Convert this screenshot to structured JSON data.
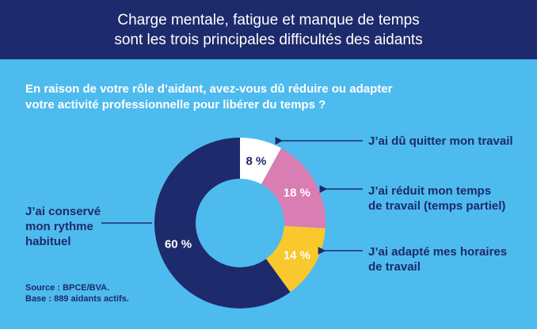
{
  "header": {
    "title_line1": "Charge mentale, fatigue et manque de temps",
    "title_line2": "sont les trois principales difficultés des aidants"
  },
  "question": {
    "line1": "En raison de votre rôle d’aidant, avez-vous dû réduire ou adapter",
    "line2": "votre activité professionnelle pour libérer du temps ?"
  },
  "source": {
    "line1": "Source : BPCE/BVA.",
    "line2": "Base : 889 aidants actifs."
  },
  "chart_data": {
    "type": "pie",
    "title": "",
    "slices": [
      {
        "label": "J'ai dû quitter mon travail",
        "value": 8,
        "display": "8 %",
        "color": "#ffffff",
        "text_color": "#1d2a6b"
      },
      {
        "label": "J'ai réduit mon temps de travail (temps partiel)",
        "value": 18,
        "display": "18 %",
        "color": "#d97db3",
        "text_color": "#ffffff"
      },
      {
        "label": "J'ai adapté mes horaires de travail",
        "value": 14,
        "display": "14 %",
        "color": "#f9c82d",
        "text_color": "#ffffff"
      },
      {
        "label": "J'ai conservé mon rythme habituel",
        "value": 60,
        "display": "60 %",
        "color": "#1d2a6b",
        "text_color": "#ffffff"
      }
    ],
    "legend_lines": [
      [
        "J’ai dû quitter mon travail"
      ],
      [
        "J’ai réduit mon temps",
        "de travail (temps partiel)"
      ],
      [
        "J’ai adapté mes horaires",
        "de travail"
      ],
      [
        "J’ai conservé",
        "mon rythme",
        "habituel"
      ]
    ],
    "accent_color": "#1d2a6b"
  }
}
